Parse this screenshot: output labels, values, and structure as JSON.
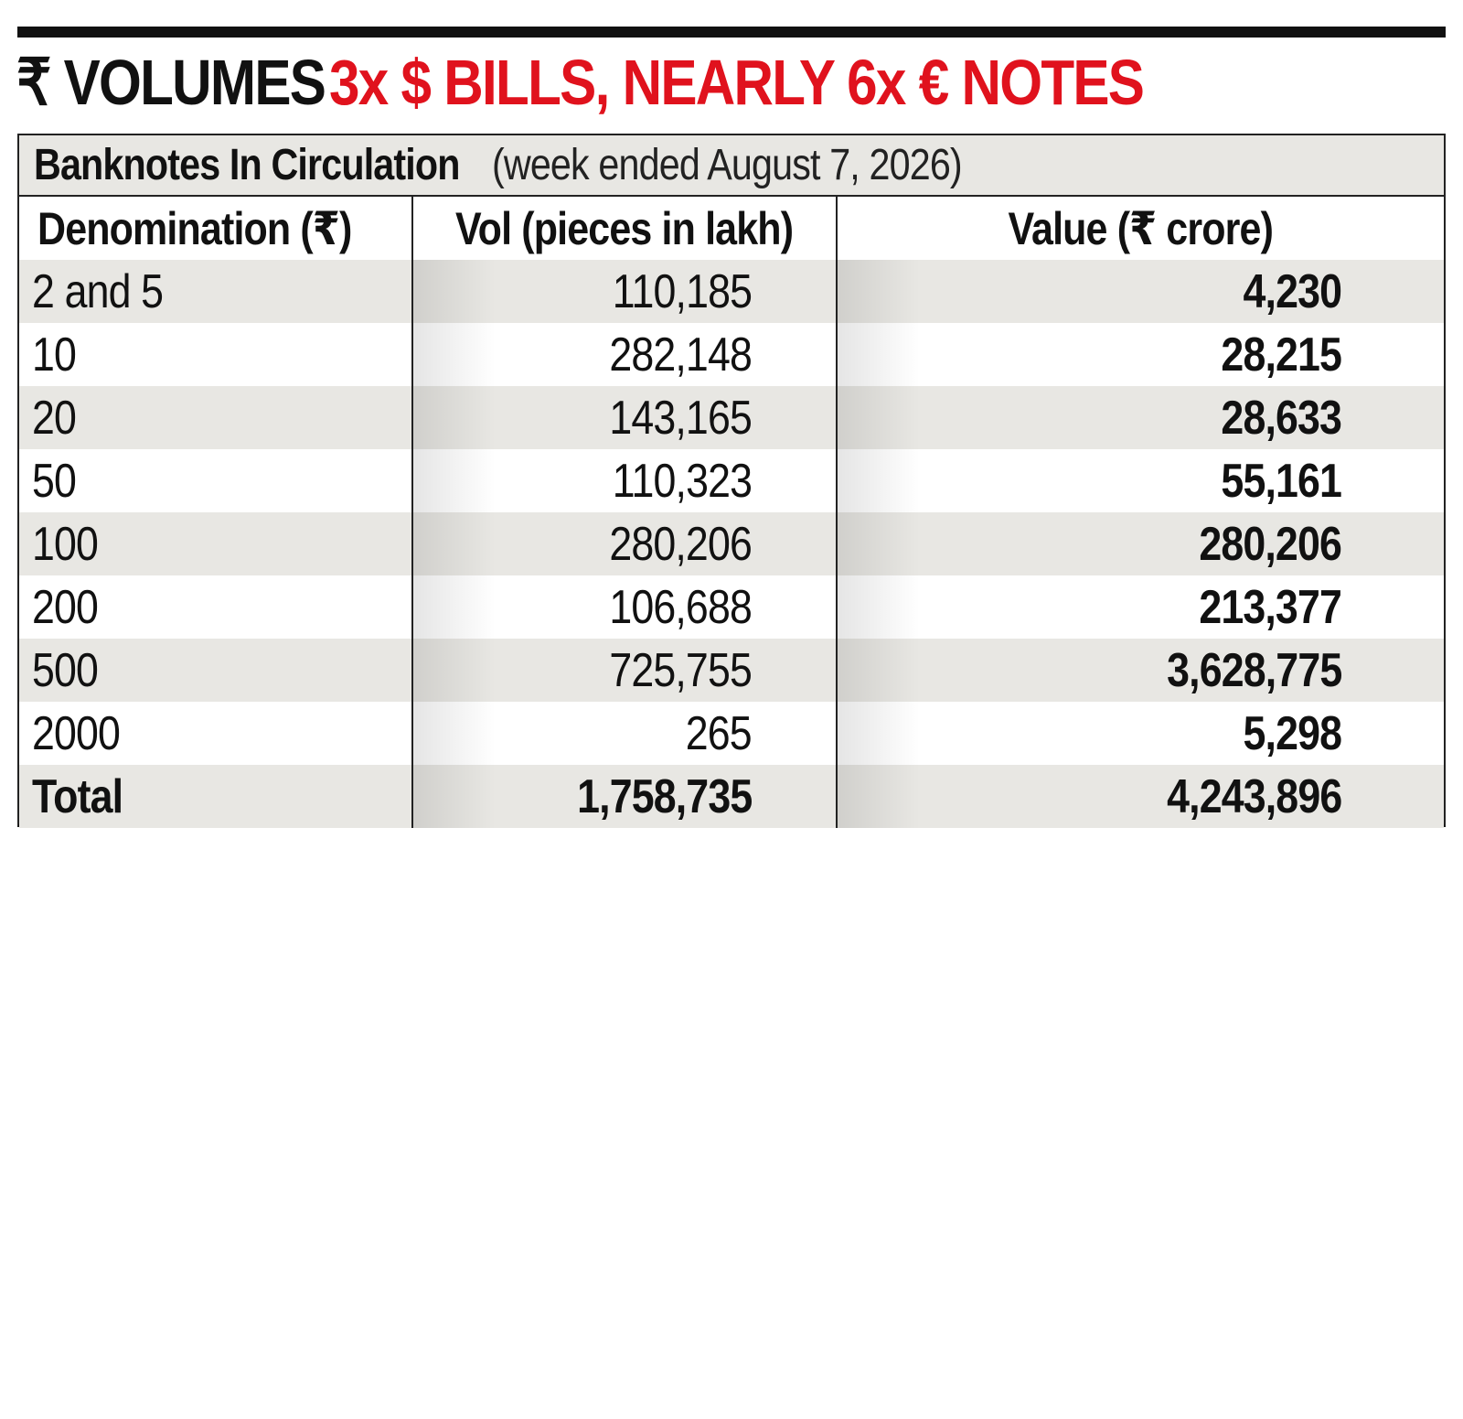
{
  "headline": {
    "black_part": "₹ VOLUMES",
    "red_part": "3x $ BILLS, NEARLY 6x € NOTES"
  },
  "colors": {
    "accent_red": "#e0121d",
    "shade_gray": "#e8e7e3",
    "text": "#111111"
  },
  "chart_data": {
    "type": "table",
    "title": "Banknotes In Circulation",
    "subtitle": "(week ended August 7, 2026)",
    "columns": [
      "Denomination (₹)",
      "Vol (pieces in lakh)",
      "Value (₹ crore)"
    ],
    "rows": [
      {
        "denomination": "2 and 5",
        "volume": "110,185",
        "value": "4,230"
      },
      {
        "denomination": "10",
        "volume": "282,148",
        "value": "28,215"
      },
      {
        "denomination": "20",
        "volume": "143,165",
        "value": "28,633"
      },
      {
        "denomination": "50",
        "volume": "110,323",
        "value": "55,161"
      },
      {
        "denomination": "100",
        "volume": "280,206",
        "value": "280,206"
      },
      {
        "denomination": "200",
        "volume": "106,688",
        "value": "213,377"
      },
      {
        "denomination": "500",
        "volume": "725,755",
        "value": "3,628,775"
      },
      {
        "denomination": "2000",
        "volume": "265",
        "value": "5,298"
      }
    ],
    "total": {
      "label": "Total",
      "volume": "1,758,735",
      "value": "4,243,896"
    }
  }
}
